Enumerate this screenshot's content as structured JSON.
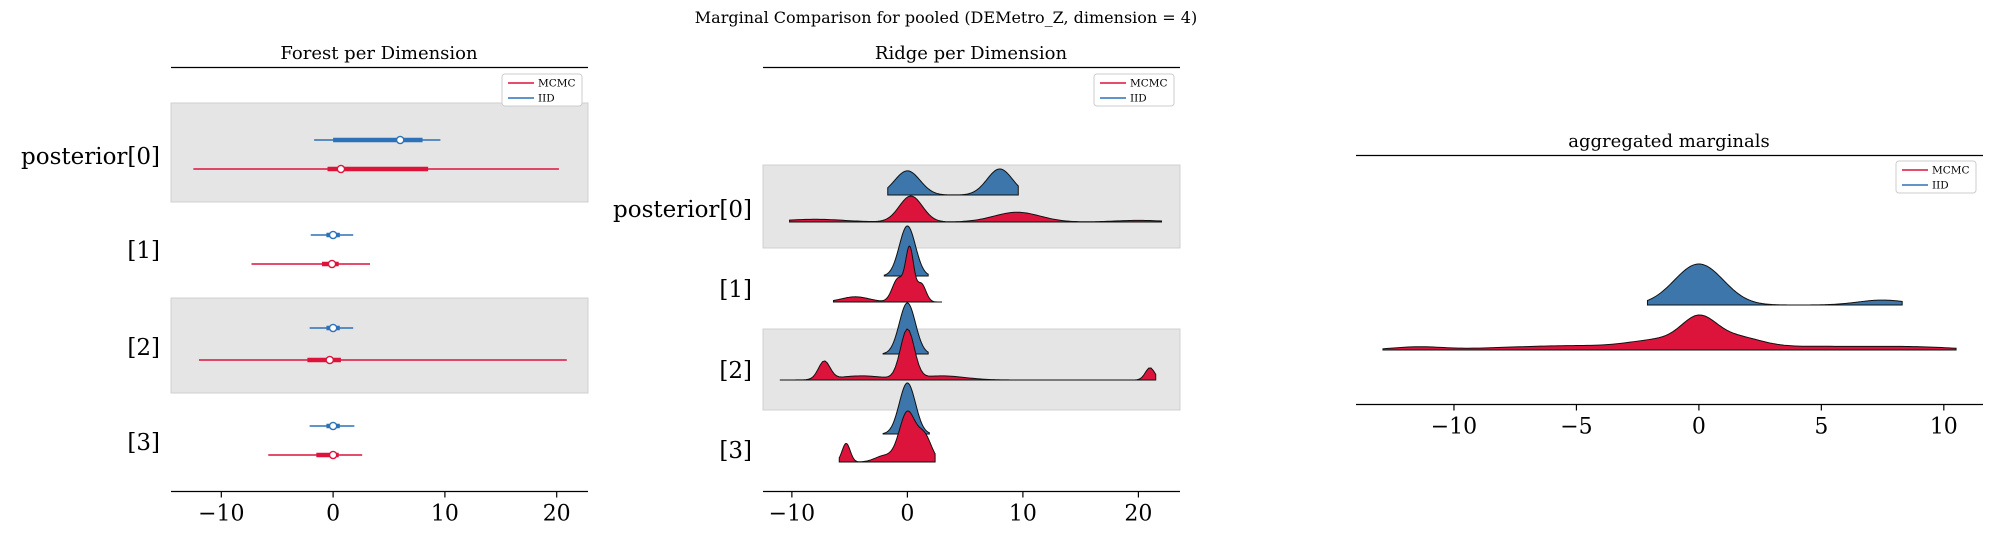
{
  "figure": {
    "suptitle": "Marginal Comparison for pooled (DEMetro_Z, dimension = 4)"
  },
  "colors": {
    "mcmc": "#dc143c",
    "iid": "#2d72b8",
    "iid_fill": "#3c76aa",
    "band": "#e5e5e5"
  },
  "chart_data": [
    {
      "type": "forest",
      "title": "Forest per Dimension",
      "xlim": [
        -14.5,
        22.8
      ],
      "xticks": [
        -10,
        0,
        10,
        20
      ],
      "xtick_labels": [
        "−10",
        "0",
        "10",
        "20"
      ],
      "rows": [
        "posterior[0]",
        "[1]",
        "[2]",
        "[3]"
      ],
      "legend": {
        "position": "top-right",
        "entries": [
          "MCMC",
          "IID"
        ]
      },
      "series": [
        {
          "name": "IID",
          "intervals": [
            {
              "hdi": [
                -1.7,
                9.6
              ],
              "iqr": [
                0.0,
                8.0
              ],
              "median": 6.0
            },
            {
              "hdi": [
                -2.0,
                1.8
              ],
              "iqr": [
                -0.6,
                0.6
              ],
              "median": 0.0
            },
            {
              "hdi": [
                -2.1,
                1.8
              ],
              "iqr": [
                -0.6,
                0.6
              ],
              "median": 0.0
            },
            {
              "hdi": [
                -2.1,
                1.9
              ],
              "iqr": [
                -0.6,
                0.6
              ],
              "median": 0.0
            }
          ]
        },
        {
          "name": "MCMC",
          "intervals": [
            {
              "hdi": [
                -12.5,
                20.2
              ],
              "iqr": [
                -0.5,
                8.5
              ],
              "median": 0.7
            },
            {
              "hdi": [
                -7.3,
                3.3
              ],
              "iqr": [
                -1.0,
                0.5
              ],
              "median": -0.1
            },
            {
              "hdi": [
                -12.0,
                20.9
              ],
              "iqr": [
                -2.3,
                0.7
              ],
              "median": -0.3
            },
            {
              "hdi": [
                -5.8,
                2.6
              ],
              "iqr": [
                -1.5,
                0.5
              ],
              "median": 0.0
            }
          ]
        }
      ]
    },
    {
      "type": "ridgeline",
      "title": "Ridge per Dimension",
      "xlim": [
        -12.5,
        23.6
      ],
      "xticks": [
        -10,
        0,
        10,
        20
      ],
      "xtick_labels": [
        "−10",
        "0",
        "10",
        "20"
      ],
      "rows": [
        "posterior[0]",
        "[1]",
        "[2]",
        "[3]"
      ],
      "legend": {
        "position": "top-right",
        "entries": [
          "MCMC",
          "IID"
        ]
      },
      "series": [
        {
          "name": "IID",
          "ranges": [
            [
              -1.7,
              9.6
            ],
            [
              -2.0,
              1.8
            ],
            [
              -2.1,
              1.8
            ],
            [
              -2.1,
              1.9
            ]
          ],
          "components": [
            [
              [
                0.0,
                1.1,
                0.65
              ],
              [
                8.0,
                1.1,
                0.7
              ]
            ],
            [
              [
                0.0,
                0.7,
                1.0
              ]
            ],
            [
              [
                0.0,
                0.7,
                1.0
              ]
            ],
            [
              [
                0.0,
                0.7,
                1.0
              ]
            ]
          ]
        },
        {
          "name": "MCMC",
          "ranges": [
            [
              -10.2,
              22.0
            ],
            [
              -6.4,
              3.0
            ],
            [
              -11.0,
              21.5
            ],
            [
              -5.9,
              2.4
            ]
          ],
          "components": [
            [
              [
                0.3,
                1.0,
                0.48
              ],
              [
                9.5,
                2.0,
                0.18
              ],
              [
                -8.0,
                2.5,
                0.05
              ],
              [
                20.0,
                2.0,
                0.03
              ]
            ],
            [
              [
                0.2,
                0.35,
                1.0
              ],
              [
                -0.8,
                0.5,
                0.45
              ],
              [
                1.2,
                0.4,
                0.35
              ],
              [
                -4.5,
                1.2,
                0.1
              ]
            ],
            [
              [
                0.0,
                0.6,
                0.6
              ],
              [
                -7.2,
                0.5,
                0.22
              ],
              [
                21.0,
                0.4,
                0.15
              ],
              [
                3.0,
                2.0,
                0.05
              ],
              [
                -4.0,
                2.0,
                0.05
              ]
            ],
            [
              [
                0.0,
                0.7,
                0.8
              ],
              [
                -5.3,
                0.35,
                0.3
              ],
              [
                1.5,
                0.6,
                0.4
              ],
              [
                -2.0,
                0.8,
                0.1
              ]
            ]
          ]
        }
      ]
    },
    {
      "type": "ridgeline",
      "title": "aggregated marginals",
      "xlim": [
        -14.0,
        11.6
      ],
      "xticks": [
        -10,
        -5,
        0,
        5,
        10
      ],
      "xtick_labels": [
        "−10",
        "−5",
        "0",
        "5",
        "10"
      ],
      "legend": {
        "position": "top-right",
        "entries": [
          "MCMC",
          "IID"
        ]
      },
      "series": [
        {
          "name": "IID",
          "range": [
            -2.1,
            8.3
          ],
          "components": [
            [
              0.0,
              1.0,
              1.0
            ],
            [
              7.5,
              1.0,
              0.12
            ]
          ]
        },
        {
          "name": "MCMC",
          "range": [
            -12.9,
            10.5
          ],
          "components": [
            [
              0.0,
              0.7,
              0.72
            ],
            [
              -1.5,
              1.2,
              0.22
            ],
            [
              1.5,
              1.0,
              0.3
            ],
            [
              -5.0,
              3.0,
              0.12
            ],
            [
              -11.5,
              1.0,
              0.08
            ],
            [
              5.0,
              3.0,
              0.1
            ],
            [
              9.0,
              1.5,
              0.05
            ]
          ]
        }
      ]
    }
  ]
}
